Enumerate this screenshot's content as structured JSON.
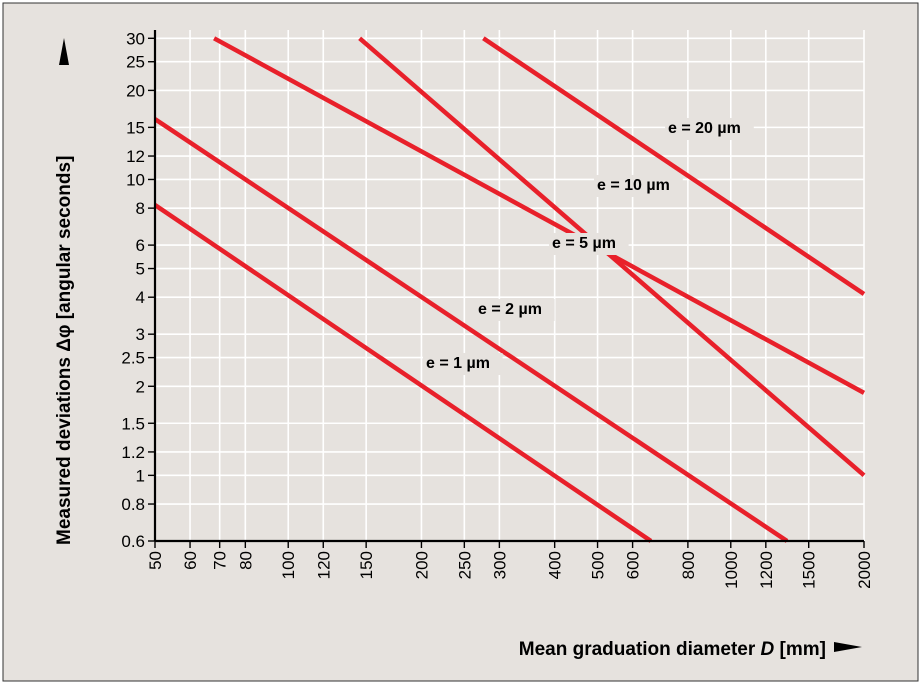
{
  "chart_data": {
    "type": "line",
    "x_scale": "log",
    "y_scale": "log",
    "xlim": [
      50,
      2000
    ],
    "ylim": [
      0.6,
      32
    ],
    "x_ticks": [
      50,
      60,
      70,
      80,
      100,
      120,
      150,
      200,
      250,
      300,
      400,
      500,
      600,
      800,
      1000,
      1200,
      1500,
      2000
    ],
    "y_ticks": [
      0.6,
      0.8,
      1,
      1.2,
      1.5,
      2,
      2.5,
      3,
      4,
      5,
      6,
      8,
      10,
      12,
      15,
      20,
      25,
      30
    ],
    "grid": true,
    "xlabel_prefix": "Mean graduation diameter ",
    "xlabel_var": "D",
    "xlabel_unit": " [mm]",
    "ylabel": "Measured deviations Δφ [angular seconds]",
    "series": [
      {
        "name": "e = 1 µm",
        "points": [
          [
            50,
            8.2
          ],
          [
            660,
            0.6
          ]
        ]
      },
      {
        "name": "e = 2 µm",
        "points": [
          [
            50,
            16
          ],
          [
            1340,
            0.6
          ]
        ]
      },
      {
        "name": "e = 5 µm",
        "points": [
          [
            145,
            30
          ],
          [
            2000,
            1.0
          ]
        ]
      },
      {
        "name": "e = 10 µm",
        "points": [
          [
            68,
            30
          ],
          [
            2000,
            1.9
          ]
        ]
      },
      {
        "name": "e = 20 µm",
        "points": [
          [
            276,
            30
          ],
          [
            2000,
            4.1
          ]
        ]
      }
    ],
    "colors": {
      "line": "#e8202a",
      "background": "#e6e2de",
      "grid": "#ffffff"
    }
  }
}
